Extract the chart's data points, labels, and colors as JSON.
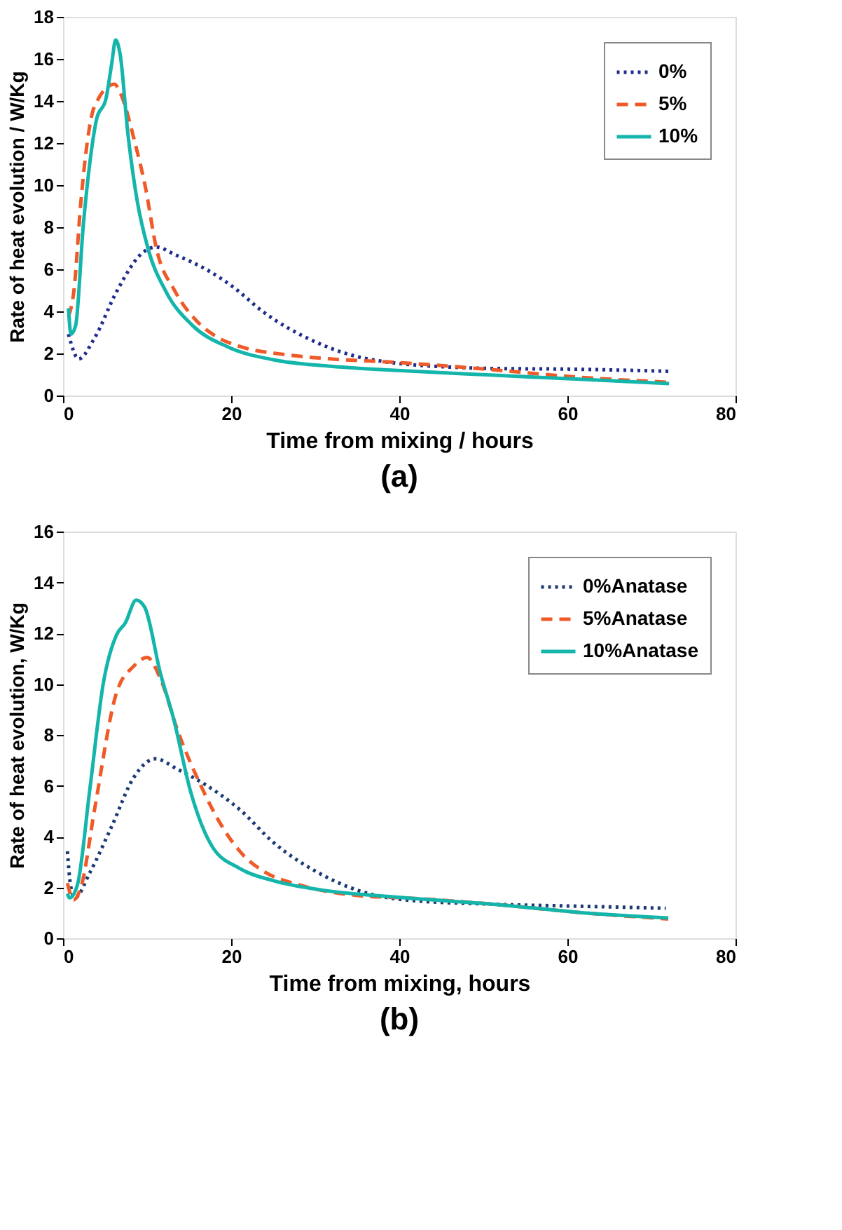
{
  "chart_data": [
    {
      "type": "line",
      "title": "(a)",
      "xlabel": "Time from mixing / hours",
      "ylabel": "Rate of heat evolution / W/Kg",
      "xlim": [
        0,
        80
      ],
      "xticks": [
        0,
        20,
        40,
        60,
        80
      ],
      "ylim": [
        0,
        18
      ],
      "yticks": [
        0,
        2,
        4,
        6,
        8,
        10,
        12,
        14,
        16,
        18
      ],
      "grid": false,
      "legend": "top right",
      "marker": "none",
      "series": [
        {
          "name": "0%",
          "color": "#1f2e8c",
          "line_style": "dotted",
          "x": [
            0.64,
            1.86,
            3.7,
            6.4,
            9.5,
            11.1,
            13.3,
            17,
            20.2,
            23.9,
            29.2,
            34.5,
            39.8,
            45.1,
            50.4,
            61,
            72.1
          ],
          "values": [
            2.92,
            1.74,
            2.7,
            4.96,
            6.8,
            7.06,
            6.7,
            6.0,
            5.17,
            3.95,
            2.7,
            1.9,
            1.53,
            1.37,
            1.29,
            1.25,
            1.15
          ]
        },
        {
          "name": "5%",
          "color": "#f05a28",
          "line_style": "dashed",
          "x": [
            0.64,
            1.3,
            2.1,
            2.9,
            3.7,
            6.1,
            6.9,
            8.5,
            9.8,
            11.1,
            13.3,
            15.9,
            18.6,
            21.2,
            26.5,
            31.8,
            39.8,
            50.4,
            61,
            72.1
          ],
          "values": [
            3.74,
            5.0,
            9.1,
            12.1,
            13.7,
            14.8,
            14.3,
            12.1,
            9.9,
            7.0,
            4.97,
            3.54,
            2.72,
            2.31,
            1.94,
            1.74,
            1.57,
            1.25,
            0.88,
            0.63
          ]
        },
        {
          "name": "10%",
          "color": "#14b5ab",
          "line_style": "solid",
          "x": [
            0.64,
            0.95,
            1.5,
            2.4,
            3.2,
            4.0,
            5.1,
            5.8,
            6.25,
            6.8,
            7.7,
            8.8,
            10.1,
            12.2,
            15.4,
            19.6,
            25,
            31.8,
            39.8,
            50.4,
            61,
            72.1
          ],
          "values": [
            4.15,
            2.92,
            3.33,
            8.04,
            11.1,
            13.15,
            14.1,
            15.8,
            16.9,
            16.2,
            12.5,
            9.3,
            7.0,
            4.97,
            3.33,
            2.31,
            1.7,
            1.39,
            1.19,
            0.98,
            0.78,
            0.57
          ]
        }
      ]
    },
    {
      "type": "line",
      "title": "(b)",
      "xlabel": "Time from mixing, hours",
      "ylabel": "Rate of heat evolution, W/Kg",
      "xlim": [
        0,
        80
      ],
      "xticks": [
        0,
        20,
        40,
        60,
        80
      ],
      "ylim": [
        0,
        16
      ],
      "yticks": [
        0,
        2,
        4,
        6,
        8,
        10,
        12,
        14,
        16
      ],
      "grid": false,
      "legend": "top right",
      "marker": "none",
      "series": [
        {
          "name": "0%Anatase",
          "color": "#1b3a73",
          "line_style": "dotted",
          "x": [
            0.52,
            0.89,
            1.4,
            3.2,
            5.8,
            8.4,
            11,
            13.6,
            16.8,
            21,
            25.1,
            30.3,
            35.5,
            40.7,
            51.2,
            61.6,
            71.7
          ],
          "values": [
            3.42,
            2.09,
            1.59,
            2.59,
            4.41,
            6.32,
            7.06,
            6.65,
            6.07,
            5.07,
            3.75,
            2.59,
            1.84,
            1.51,
            1.34,
            1.26,
            1.18
          ]
        },
        {
          "name": "5%Anatase",
          "color": "#f05a28",
          "line_style": "dashed",
          "x": [
            0.52,
            1.25,
            2.2,
            3.75,
            6.4,
            8.4,
            10,
            11.6,
            13.6,
            16.3,
            18.9,
            21.5,
            24.1,
            28.2,
            35.5,
            40.7,
            51.2,
            61.6,
            72
          ],
          "values": [
            2.17,
            1.51,
            2.09,
            5.07,
            9.7,
            10.7,
            11.05,
            10.2,
            8.2,
            6.07,
            4.41,
            3.25,
            2.59,
            2.09,
            1.67,
            1.59,
            1.34,
            1.01,
            0.76
          ]
        },
        {
          "name": "10%Anatase",
          "color": "#14b5ab",
          "line_style": "solid",
          "x": [
            0.52,
            0.78,
            1.7,
            3.2,
            4.8,
            6.4,
            7.4,
            8.7,
            9.7,
            11.6,
            13.1,
            15.2,
            17.8,
            21,
            25.1,
            30.3,
            40.7,
            51.2,
            61.6,
            72
          ],
          "values": [
            1.76,
            1.59,
            2.09,
            5.9,
            10.05,
            11.96,
            12.4,
            13.3,
            13.03,
            10.4,
            8.7,
            5.74,
            3.58,
            2.75,
            2.26,
            1.92,
            1.59,
            1.34,
            1.01,
            0.8
          ]
        }
      ]
    }
  ]
}
